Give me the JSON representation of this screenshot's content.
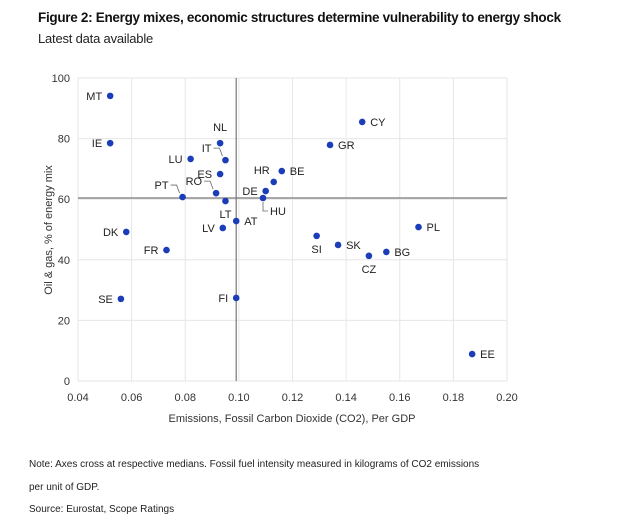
{
  "header": {
    "title": "Figure 2: Energy mixes, economic structures determine vulnerability to energy shock",
    "subtitle": "Latest data available"
  },
  "chart_data": {
    "type": "scatter",
    "title": "Figure 2: Energy mixes, economic structures determine vulnerability to energy shock",
    "subtitle": "Latest data available",
    "xlabel": "Emissions, Fossil Carbon Dioxide (CO2), Per GDP",
    "ylabel": "Oil & gas, % of energy mix",
    "xlim": [
      0.04,
      0.2
    ],
    "ylim": [
      0,
      100
    ],
    "xticks": [
      "0.04",
      "0.06",
      "0.08",
      "0.10",
      "0.12",
      "0.14",
      "0.16",
      "0.18",
      "0.20"
    ],
    "xtick_values": [
      0.04,
      0.06,
      0.08,
      0.1,
      0.12,
      0.14,
      0.16,
      0.18,
      0.2
    ],
    "yticks": [
      "0",
      "20",
      "40",
      "60",
      "80",
      "100"
    ],
    "ytick_values": [
      0,
      20,
      40,
      60,
      80,
      100
    ],
    "grid": true,
    "median_x": 0.099,
    "median_y": 60.4,
    "point_color": "#1b3db8",
    "points": [
      {
        "label": "MT",
        "x": 0.052,
        "y": 94.1,
        "pos": "left"
      },
      {
        "label": "IE",
        "x": 0.052,
        "y": 78.5,
        "pos": "left"
      },
      {
        "label": "LU",
        "x": 0.082,
        "y": 73.3,
        "pos": "left"
      },
      {
        "label": "NL",
        "x": 0.093,
        "y": 78.5,
        "pos": "above"
      },
      {
        "label": "IT",
        "x": 0.095,
        "y": 72.9,
        "pos": "upleft-leader"
      },
      {
        "label": "ES",
        "x": 0.093,
        "y": 68.3,
        "pos": "left"
      },
      {
        "label": "RO",
        "x": 0.0915,
        "y": 62.0,
        "pos": "upleft-leader"
      },
      {
        "label": "PT",
        "x": 0.079,
        "y": 60.7,
        "pos": "upleft-leader"
      },
      {
        "label": "LT",
        "x": 0.095,
        "y": 59.4,
        "pos": "below"
      },
      {
        "label": "AT",
        "x": 0.099,
        "y": 52.8,
        "pos": "right"
      },
      {
        "label": "LV",
        "x": 0.094,
        "y": 50.5,
        "pos": "left"
      },
      {
        "label": "DK",
        "x": 0.058,
        "y": 49.2,
        "pos": "left"
      },
      {
        "label": "FR",
        "x": 0.073,
        "y": 43.2,
        "pos": "left"
      },
      {
        "label": "SE",
        "x": 0.056,
        "y": 27.1,
        "pos": "left"
      },
      {
        "label": "FI",
        "x": 0.099,
        "y": 27.4,
        "pos": "left"
      },
      {
        "label": "BE",
        "x": 0.116,
        "y": 69.3,
        "pos": "right"
      },
      {
        "label": "HR",
        "x": 0.113,
        "y": 65.7,
        "pos": "upleft"
      },
      {
        "label": "DE",
        "x": 0.11,
        "y": 62.7,
        "pos": "left"
      },
      {
        "label": "HU",
        "x": 0.109,
        "y": 60.4,
        "pos": "downright-leader"
      },
      {
        "label": "GR",
        "x": 0.134,
        "y": 77.9,
        "pos": "right"
      },
      {
        "label": "CY",
        "x": 0.146,
        "y": 85.5,
        "pos": "right"
      },
      {
        "label": "PL",
        "x": 0.167,
        "y": 50.8,
        "pos": "right"
      },
      {
        "label": "SI",
        "x": 0.129,
        "y": 47.9,
        "pos": "below"
      },
      {
        "label": "SK",
        "x": 0.137,
        "y": 44.9,
        "pos": "right"
      },
      {
        "label": "CZ",
        "x": 0.1485,
        "y": 41.3,
        "pos": "below"
      },
      {
        "label": "BG",
        "x": 0.155,
        "y": 42.6,
        "pos": "right"
      },
      {
        "label": "EE",
        "x": 0.187,
        "y": 8.9,
        "pos": "right"
      }
    ]
  },
  "footer": {
    "note_line1": "Note: Axes cross at respective medians. Fossil fuel intensity measured in kilograms of CO2 emissions",
    "note_line2": "per unit of GDP.",
    "source": "Source: Eurostat, Scope Ratings"
  }
}
